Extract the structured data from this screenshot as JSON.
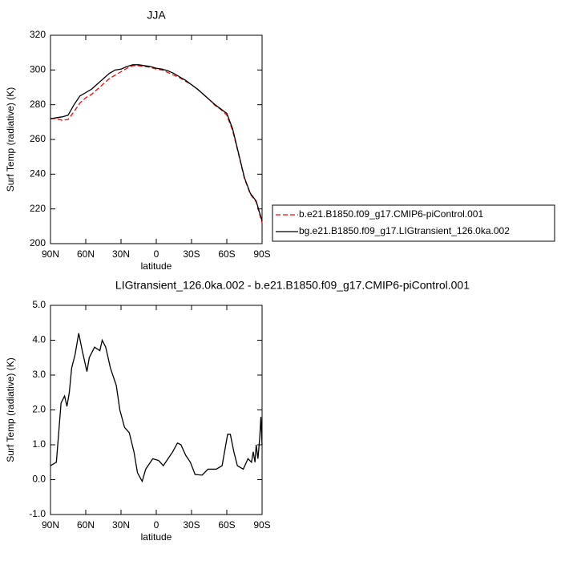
{
  "chart_data": [
    {
      "type": "line",
      "title": "JJA",
      "xlabel": "latitude",
      "ylabel": "Surf Temp (radiative) (K)",
      "x": [
        90,
        85,
        80,
        75,
        70,
        65,
        60,
        55,
        50,
        45,
        40,
        35,
        30,
        25,
        20,
        15,
        10,
        5,
        0,
        -5,
        -10,
        -15,
        -20,
        -25,
        -30,
        -35,
        -40,
        -45,
        -50,
        -55,
        -60,
        -65,
        -70,
        -75,
        -80,
        -85,
        -90
      ],
      "series": [
        {
          "name": "b.e21.B1850.f09_g17.CMIP6-piControl.001",
          "color": "#ff0000",
          "dash": true,
          "values": [
            272,
            272,
            271,
            271.5,
            276,
            281,
            284,
            286,
            289,
            292,
            295,
            297,
            299,
            301,
            302.5,
            302.5,
            302,
            301.5,
            300.5,
            300,
            298.5,
            297,
            295.5,
            293.5,
            291.5,
            289,
            286,
            283,
            279.6,
            277.2,
            274,
            265,
            251.5,
            237.5,
            228.5,
            224,
            212
          ]
        },
        {
          "name": "bg.e21.B1850.f09_g17.LIGtransient_126.0ka.002",
          "color": "#000000",
          "dash": false,
          "values": [
            272,
            272.5,
            273,
            274,
            280,
            285,
            287,
            289,
            292,
            295,
            298,
            300,
            300.5,
            302,
            303,
            303,
            302.5,
            302,
            301,
            300.5,
            299.5,
            298,
            296,
            294,
            291.5,
            289,
            286,
            283,
            280,
            277.5,
            275,
            266,
            252,
            238,
            229,
            224.5,
            213
          ]
        }
      ],
      "xlim": [
        90,
        -90
      ],
      "xticks": [
        {
          "value": 90,
          "label": "90N"
        },
        {
          "value": 60,
          "label": "60N"
        },
        {
          "value": 30,
          "label": "30N"
        },
        0,
        {
          "value": -30,
          "label": "30S"
        },
        {
          "value": -60,
          "label": "60S"
        },
        {
          "value": -90,
          "label": "90S"
        }
      ],
      "ylim": [
        200,
        320
      ],
      "yticks": [
        200,
        220,
        240,
        260,
        280,
        300,
        320
      ],
      "legend": "right"
    },
    {
      "type": "line",
      "title": "LIGtransient_126.0ka.002 - b.e21.B1850.f09_g17.CMIP6-piControl.001",
      "xlabel": "latitude",
      "ylabel": "Surf Temp (radiative) (K)",
      "x": [
        90,
        85,
        81,
        78,
        76,
        74,
        72,
        69,
        66,
        63,
        59,
        57,
        52.5,
        48,
        46,
        43,
        39,
        34,
        31,
        27,
        23,
        19,
        16,
        12,
        9,
        3,
        -2,
        -6,
        -10,
        -14,
        -18,
        -21,
        -25,
        -29,
        -33,
        -39,
        -44,
        -51,
        -56,
        -60.7,
        -63,
        -66,
        -69,
        -74,
        -78,
        -81,
        -82.5,
        -84,
        -85,
        -86.5,
        -88,
        -89,
        -90
      ],
      "series": [
        {
          "color": "#000000",
          "dash": false,
          "values": [
            0.4,
            0.5,
            2.2,
            2.4,
            2.1,
            2.5,
            3.2,
            3.6,
            4.2,
            3.7,
            3.1,
            3.5,
            3.8,
            3.7,
            4.0,
            3.8,
            3.2,
            2.7,
            2.0,
            1.5,
            1.35,
            0.8,
            0.2,
            -0.05,
            0.3,
            0.6,
            0.55,
            0.4,
            0.6,
            0.8,
            1.05,
            1.0,
            0.7,
            0.5,
            0.15,
            0.13,
            0.3,
            0.3,
            0.4,
            1.3,
            1.3,
            0.8,
            0.4,
            0.3,
            0.6,
            0.5,
            0.8,
            0.5,
            1.0,
            0.6,
            1.2,
            1.8,
            1.0
          ]
        }
      ],
      "xlim": [
        90,
        -90
      ],
      "xticks": [
        {
          "value": 90,
          "label": "90N"
        },
        {
          "value": 60,
          "label": "60N"
        },
        {
          "value": 30,
          "label": "30N"
        },
        0,
        {
          "value": -30,
          "label": "30S"
        },
        {
          "value": -60,
          "label": "60S"
        },
        {
          "value": -90,
          "label": "90S"
        }
      ],
      "ylim": [
        -1,
        5
      ],
      "yticks": [
        {
          "value": -1,
          "label": "-1.0"
        },
        {
          "value": 0,
          "label": "0.0"
        },
        {
          "value": 1,
          "label": "1.0"
        },
        {
          "value": 2,
          "label": "2.0"
        },
        {
          "value": 3,
          "label": "3.0"
        },
        {
          "value": 4,
          "label": "4.0"
        },
        {
          "value": 5,
          "label": "5.0"
        }
      ]
    }
  ]
}
